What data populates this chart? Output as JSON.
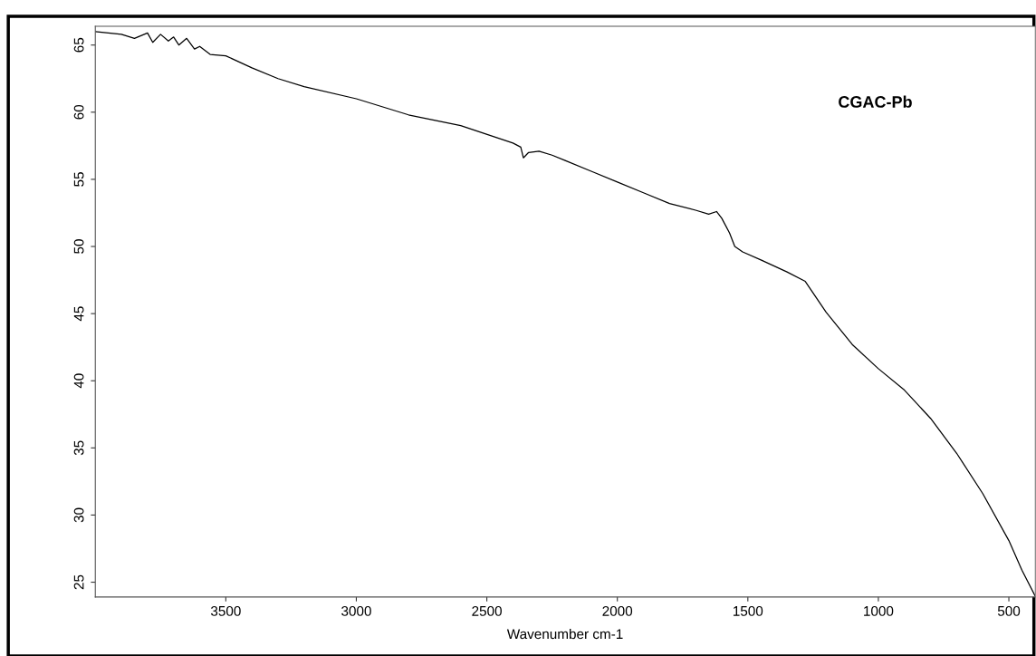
{
  "chart_data": {
    "type": "line",
    "xlabel": "Wavenumber cm-1",
    "annotations": [
      "CGAC-Pb"
    ],
    "x": [
      4000,
      3900,
      3850,
      3800,
      3780,
      3750,
      3720,
      3700,
      3680,
      3650,
      3620,
      3600,
      3560,
      3500,
      3400,
      3300,
      3200,
      3000,
      2800,
      2600,
      2400,
      2370,
      2360,
      2340,
      2300,
      2250,
      2200,
      2100,
      2000,
      1900,
      1800,
      1700,
      1650,
      1620,
      1600,
      1570,
      1550,
      1520,
      1450,
      1350,
      1280,
      1200,
      1100,
      1000,
      900,
      800,
      700,
      600,
      500,
      450,
      400
    ],
    "series": [
      {
        "color": "#000000",
        "values": [
          66.0,
          65.8,
          65.5,
          65.9,
          65.2,
          65.8,
          65.3,
          65.6,
          65.0,
          65.5,
          64.7,
          64.9,
          64.3,
          64.2,
          63.3,
          62.5,
          61.9,
          61.0,
          59.8,
          59.0,
          57.7,
          57.4,
          56.6,
          57.0,
          57.1,
          56.8,
          56.4,
          55.6,
          54.8,
          54.0,
          53.2,
          52.7,
          52.4,
          52.6,
          52.1,
          51.0,
          50.0,
          49.6,
          49.0,
          48.1,
          47.4,
          45.1,
          42.7,
          40.9,
          39.3,
          37.2,
          34.6,
          31.6,
          28.1,
          25.9,
          24.0
        ]
      }
    ],
    "xlim": [
      4000,
      400
    ],
    "ylim": [
      23.9,
      66.4
    ],
    "xticks": [
      3500,
      3000,
      2500,
      2000,
      1500,
      1000,
      500
    ],
    "yticks": [
      25,
      30,
      35,
      40,
      45,
      50,
      55,
      60,
      65
    ]
  }
}
